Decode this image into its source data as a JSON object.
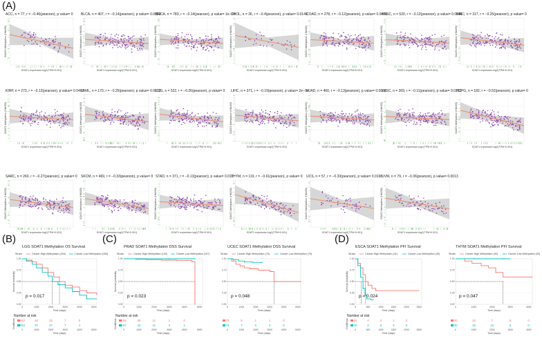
{
  "panel_labels": [
    "(A)",
    "(B)",
    "(C)",
    "(D)"
  ],
  "colors": {
    "point": "#8e44ad",
    "fit": "#e8967a",
    "band": "#bcbcbc",
    "rug": "#7cc576",
    "high": "#f8766d",
    "low": "#00bfc4",
    "grid": "#ebebeb"
  },
  "scatter_axis": {
    "xlabel": "SOAT1 expression log2(TPM+0.001)",
    "ylabel": "SOAT1 Methylation (HM450)"
  },
  "chart_data": [
    {
      "type": "scatter",
      "title": "ACC, n = 77, r = −0.46(pearson), p value= 0",
      "n": 77,
      "r": -0.46,
      "p": "0"
    },
    {
      "type": "scatter",
      "title": "BLCA, n = 407, r = −0.14(pearson), p value= 0.0053",
      "n": 407,
      "r": -0.14,
      "p": "0.0053"
    },
    {
      "type": "scatter",
      "title": "BRCA, n = 783, r = −0.14(pearson), p value= 1e−04",
      "n": 783,
      "r": -0.14,
      "p": "1e−04"
    },
    {
      "type": "scatter",
      "title": "CHOL, n = 36, r = −0.4(pearson), p value= 0.0148",
      "n": 36,
      "r": -0.4,
      "p": "0.0148"
    },
    {
      "type": "scatter",
      "title": "COAD, n = 278, r = −0.12(pearson), p value= 0.0493",
      "n": 278,
      "r": -0.12,
      "p": "0.0493"
    },
    {
      "type": "scatter",
      "title": "HNSC, n = 520, r = −0.12(pearson), p value= 0.0045",
      "n": 520,
      "r": -0.12,
      "p": "0.0045"
    },
    {
      "type": "scatter",
      "title": "KIRC, n = 317, r = −0.25(pearson), p value= 0",
      "n": 317,
      "r": -0.25,
      "p": "0"
    },
    {
      "type": "scatter",
      "title": "KIRP, n = 273, r = −0.12(pearson), p value= 0.0409",
      "n": 273,
      "r": -0.12,
      "p": "0.0409"
    },
    {
      "type": "scatter",
      "title": "LAML, n = 170, r = −0.25(pearson), p value= 0.0012",
      "n": 170,
      "r": -0.25,
      "p": "0.0012"
    },
    {
      "type": "scatter",
      "title": "LGG, n = 522, r = −0.26(pearson), p value= 0",
      "n": 522,
      "r": -0.26,
      "p": "0"
    },
    {
      "type": "scatter",
      "title": "LIHC, n = 371, r = −0.19(pearson), p value= 2e−04",
      "n": 371,
      "r": -0.19,
      "p": "2e−04"
    },
    {
      "type": "scatter",
      "title": "LUAD, n = 460, r = −0.13(pearson), p value= 0.0066",
      "n": 460,
      "r": -0.13,
      "p": "0.0066"
    },
    {
      "type": "scatter",
      "title": "LUSC, n = 369, r = −0.11(pearson), p value= 0.0312",
      "n": 369,
      "r": -0.11,
      "p": "0.0312"
    },
    {
      "type": "scatter",
      "title": "PCPG, n = 182, r = −0.52(pearson), p value= 0",
      "n": 182,
      "r": -0.52,
      "p": "0"
    },
    {
      "type": "scatter",
      "title": "SARC, n = 260, r = −0.27(pearson), p value= 0",
      "n": 260,
      "r": -0.27,
      "p": "0"
    },
    {
      "type": "scatter",
      "title": "SKCM, n = 469, r = −0.33(pearson), p value= 0",
      "n": 469,
      "r": -0.33,
      "p": "0"
    },
    {
      "type": "scatter",
      "title": "STAD, n = 371, r = −0.13(pearson), p value= 0.012",
      "n": 371,
      "r": -0.13,
      "p": "0.012"
    },
    {
      "type": "scatter",
      "title": "THYM, n = 119, r = −0.61(pearson), p value= 0",
      "n": 119,
      "r": -0.61,
      "p": "0"
    },
    {
      "type": "scatter",
      "title": "UCS, n = 57, r = −0.33(pearson), p value= 0.0198",
      "n": 57,
      "r": -0.33,
      "p": "0.0198"
    },
    {
      "type": "scatter",
      "title": "UVM, n = 79, r = −0.36(pearson), p value= 0.0013",
      "n": 79,
      "r": -0.36,
      "p": "0.0013"
    },
    {
      "type": "line",
      "title": "LGG SOAT1 Methylation OS Survival",
      "legend": [
        "Strata",
        "Cancer-High Methylation (263)",
        "Cancer-Low Methylation (263)"
      ],
      "pvalue": "p = 0.017",
      "xlabel": "Time (days)",
      "ylabel": "Survival probability",
      "xticks": [
        "0",
        "1000",
        "2000",
        "3000",
        "4000",
        "5000"
      ],
      "yticks": [
        "0.00",
        "0.25",
        "0.50",
        "0.75",
        "1.00"
      ],
      "xlim": [
        0,
        5200
      ],
      "series": [
        {
          "name": "Cancer-High Methylation",
          "points": [
            [
              0,
              1
            ],
            [
              300,
              0.97
            ],
            [
              700,
              0.93
            ],
            [
              1000,
              0.88
            ],
            [
              1400,
              0.8
            ],
            [
              1800,
              0.7
            ],
            [
              2200,
              0.6
            ],
            [
              2600,
              0.5
            ],
            [
              3000,
              0.42
            ],
            [
              3500,
              0.38
            ],
            [
              4000,
              0.3
            ],
            [
              4500,
              0.25
            ],
            [
              5200,
              0.2
            ]
          ]
        },
        {
          "name": "Cancer-Low Methylation",
          "points": [
            [
              0,
              1
            ],
            [
              300,
              0.95
            ],
            [
              700,
              0.88
            ],
            [
              1000,
              0.8
            ],
            [
              1400,
              0.7
            ],
            [
              1800,
              0.62
            ],
            [
              2100,
              0.5
            ],
            [
              2500,
              0.43
            ],
            [
              3000,
              0.36
            ],
            [
              3500,
              0.28
            ],
            [
              4000,
              0.2
            ],
            [
              4500,
              0.12
            ],
            [
              5200,
              0.12
            ]
          ]
        }
      ],
      "median_markers": [
        2600,
        2100
      ],
      "risk_title": "Number at risk",
      "risk_strata": [
        "Strata",
        "Strata"
      ],
      "risk": [
        [
          "263",
          "92",
          "32",
          "7",
          "0"
        ],
        [
          "263",
          "97",
          "27",
          "7",
          "1"
        ]
      ],
      "risk_times": [
        0,
        1000,
        2000,
        3000,
        4000
      ]
    },
    {
      "type": "line",
      "title": "PRAD SOAT1 Methylation DSS Survival",
      "legend": [
        "Strata",
        "Cancer-High Methylation (109)",
        "Cancer-Low Methylation (107)"
      ],
      "pvalue": "p = 0.023",
      "xlabel": "Time (days)",
      "ylabel": "Survival probability",
      "xticks": [
        "0",
        "1000",
        "2000",
        "3000",
        "4000",
        "5000"
      ],
      "yticks": [
        "0.00",
        "0.25",
        "0.50",
        "0.75",
        "1.00"
      ],
      "xlim": [
        0,
        5200
      ],
      "series": [
        {
          "name": "Cancer-High Methylation",
          "points": [
            [
              0,
              1
            ],
            [
              800,
              0.99
            ],
            [
              1500,
              0.98
            ],
            [
              2500,
              0.97
            ],
            [
              3500,
              0.96
            ],
            [
              4500,
              0.94
            ],
            [
              4700,
              0.94
            ],
            [
              4700,
              0.0
            ]
          ]
        },
        {
          "name": "Cancer-Low Methylation",
          "points": [
            [
              0,
              1
            ],
            [
              1000,
              1
            ],
            [
              2000,
              1
            ],
            [
              3000,
              1
            ],
            [
              4000,
              1
            ],
            [
              4700,
              1
            ]
          ]
        }
      ],
      "median_markers": [
        4700
      ],
      "risk_title": "Number at risk",
      "risk_strata": [
        "Strata",
        "Strata"
      ],
      "risk": [
        [
          "109",
          "48",
          "11",
          "1",
          "0"
        ],
        [
          "107",
          "42",
          "11",
          "4",
          "1"
        ]
      ],
      "risk_times": [
        0,
        1000,
        2000,
        3000,
        4000
      ]
    },
    {
      "type": "line",
      "title": "UCEC SOAT1 Methylation DSS Survival",
      "legend": [
        "Strata",
        "Cancer-High Methylation (75)",
        "Cancer-Low Methylation (75)"
      ],
      "pvalue": "p = 0.048",
      "xlabel": "Time (days)",
      "ylabel": "",
      "xticks": [
        "0",
        "1000",
        "2000",
        "3000",
        "4000",
        "5000"
      ],
      "yticks": [
        "0.00",
        "0.25",
        "0.50",
        "0.75",
        "1.00"
      ],
      "xlim": [
        0,
        5200
      ],
      "series": [
        {
          "name": "Cancer-High Methylation",
          "points": [
            [
              0,
              1
            ],
            [
              300,
              0.95
            ],
            [
              600,
              0.88
            ],
            [
              900,
              0.84
            ],
            [
              1200,
              0.8
            ],
            [
              1600,
              0.78
            ],
            [
              2200,
              0.75
            ],
            [
              3000,
              0.72
            ],
            [
              3300,
              0.5
            ],
            [
              5200,
              0.5
            ]
          ]
        },
        {
          "name": "Cancer-Low Methylation",
          "points": [
            [
              0,
              1
            ],
            [
              400,
              0.98
            ],
            [
              800,
              0.95
            ],
            [
              1200,
              0.93
            ],
            [
              1800,
              0.92
            ],
            [
              2500,
              0.92
            ]
          ]
        }
      ],
      "median_markers": [
        3300
      ],
      "risk_title": "",
      "risk_strata": [
        "",
        ""
      ],
      "risk": [
        [
          "75",
          "8",
          "1",
          "1",
          "0"
        ],
        [
          "75",
          "7",
          "0",
          "0",
          "0"
        ]
      ],
      "risk_times": [
        0,
        1000,
        2000,
        3000,
        4000
      ]
    },
    {
      "type": "line",
      "title": "ESCA SOAT1 Methylation PFI Survival",
      "legend": [
        "Strata",
        "Cancer-High Methylation (41)",
        "Cancer-Low Methylation (40)"
      ],
      "pvalue": "p = 0.024",
      "xlabel": "Time (days)",
      "ylabel": "Survival probability",
      "xticks": [
        "0",
        "500",
        "1000",
        "1500",
        "2000",
        "2500"
      ],
      "yticks": [
        "0.00",
        "0.25",
        "0.50",
        "0.75",
        "1.00"
      ],
      "xlim": [
        0,
        2600
      ],
      "series": [
        {
          "name": "Cancer-High Methylation",
          "points": [
            [
              0,
              1
            ],
            [
              100,
              0.9
            ],
            [
              200,
              0.8
            ],
            [
              300,
              0.65
            ],
            [
              400,
              0.5
            ],
            [
              500,
              0.42
            ],
            [
              650,
              0.35
            ],
            [
              800,
              0.3
            ],
            [
              2500,
              0.3
            ]
          ]
        },
        {
          "name": "Cancer-Low Methylation",
          "points": [
            [
              0,
              1
            ],
            [
              100,
              0.85
            ],
            [
              200,
              0.6
            ],
            [
              300,
              0.35
            ],
            [
              380,
              0.2
            ],
            [
              450,
              0.12
            ],
            [
              600,
              0.1
            ],
            [
              700,
              0.1
            ]
          ]
        }
      ],
      "median_markers": [
        400,
        230
      ],
      "risk_title": "Number at risk",
      "risk_strata": [
        "Strata",
        "Strata"
      ],
      "risk": [
        [
          "41",
          "4",
          "2",
          "1",
          "0"
        ],
        [
          "40",
          "2",
          "0",
          "0",
          "0"
        ]
      ],
      "risk_times": [
        0,
        500,
        1000,
        1500,
        2000
      ]
    },
    {
      "type": "line",
      "title": "THYM SOAT1 Methylation PFI Survival",
      "legend": [
        "Strata",
        "Cancer-High Methylation (30)",
        "Cancer-Low Methylation (30)"
      ],
      "pvalue": "p = 0.047",
      "xlabel": "Time (days)",
      "ylabel": "",
      "xticks": [
        "0",
        "1000",
        "2000",
        "3000",
        "4000"
      ],
      "yticks": [
        "0.00",
        "0.25",
        "0.50",
        "0.75",
        "1.00"
      ],
      "xlim": [
        0,
        4200
      ],
      "series": [
        {
          "name": "Cancer-High Methylation",
          "points": [
            [
              0,
              1
            ],
            [
              500,
              0.95
            ],
            [
              900,
              0.9
            ],
            [
              1400,
              0.85
            ],
            [
              1800,
              0.8
            ],
            [
              2200,
              0.7
            ],
            [
              2600,
              0.6
            ],
            [
              4200,
              0.6
            ]
          ]
        },
        {
          "name": "Cancer-Low Methylation",
          "points": [
            [
              0,
              1
            ],
            [
              1000,
              1
            ],
            [
              2000,
              1
            ],
            [
              2600,
              1
            ],
            [
              3000,
              1
            ]
          ]
        }
      ],
      "median_markers": [
        2600
      ],
      "risk_title": "",
      "risk_strata": [
        "",
        ""
      ],
      "risk": [
        [
          "30",
          "18",
          "7",
          "5",
          "0"
        ],
        [
          "30",
          "15",
          "10",
          "6",
          "0"
        ]
      ],
      "risk_times": [
        0,
        1000,
        2000,
        3000,
        4000
      ]
    }
  ]
}
